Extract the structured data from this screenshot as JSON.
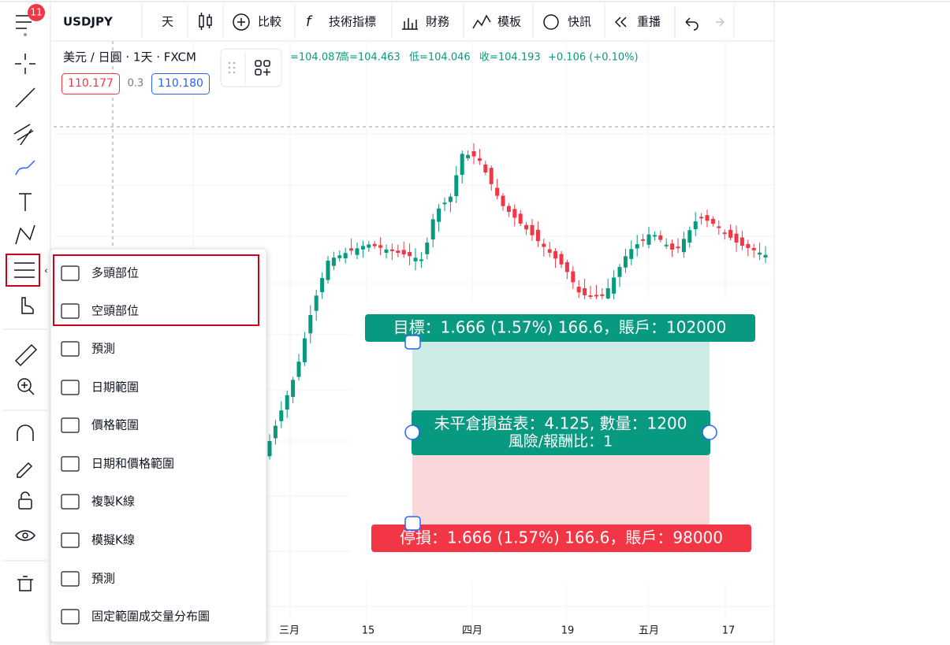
{
  "toolbar": {
    "badge": "11",
    "symbol": "USDJPY",
    "interval": "天",
    "buttons": [
      "比較",
      "技術指標",
      "財務",
      "模板",
      "快訊",
      "重播"
    ]
  },
  "legend": {
    "title": "美元 / 日圓 · 1天 · FXCM",
    "open": "=104.087",
    "high": "高=104.463",
    "low": "低=104.046",
    "close": "收=104.193",
    "change": "+0.106 (+0.10%)",
    "sell": "110.177",
    "spread": "0.3",
    "buy": "110.180"
  },
  "menu": {
    "items": [
      "多頭部位",
      "空頭部位",
      "預測",
      "日期範圍",
      "價格範圍",
      "日期和價格範圍",
      "複製K線",
      "模擬K線",
      "預測",
      "固定範圍成交量分布圖"
    ]
  },
  "position": {
    "target": "目標：1.666 (1.57%) 166.6，賬戶：102000",
    "pnl": "未平倉損益表：4.125, 數量：1200",
    "ratio": "風險/報酬比：1",
    "stop": "停損：1.666 (1.57%) 166.6，賬戶：98000"
  },
  "x_axis": {
    "labels": [
      "三月",
      "15",
      "四月",
      "19",
      "五月",
      "17"
    ]
  }
}
